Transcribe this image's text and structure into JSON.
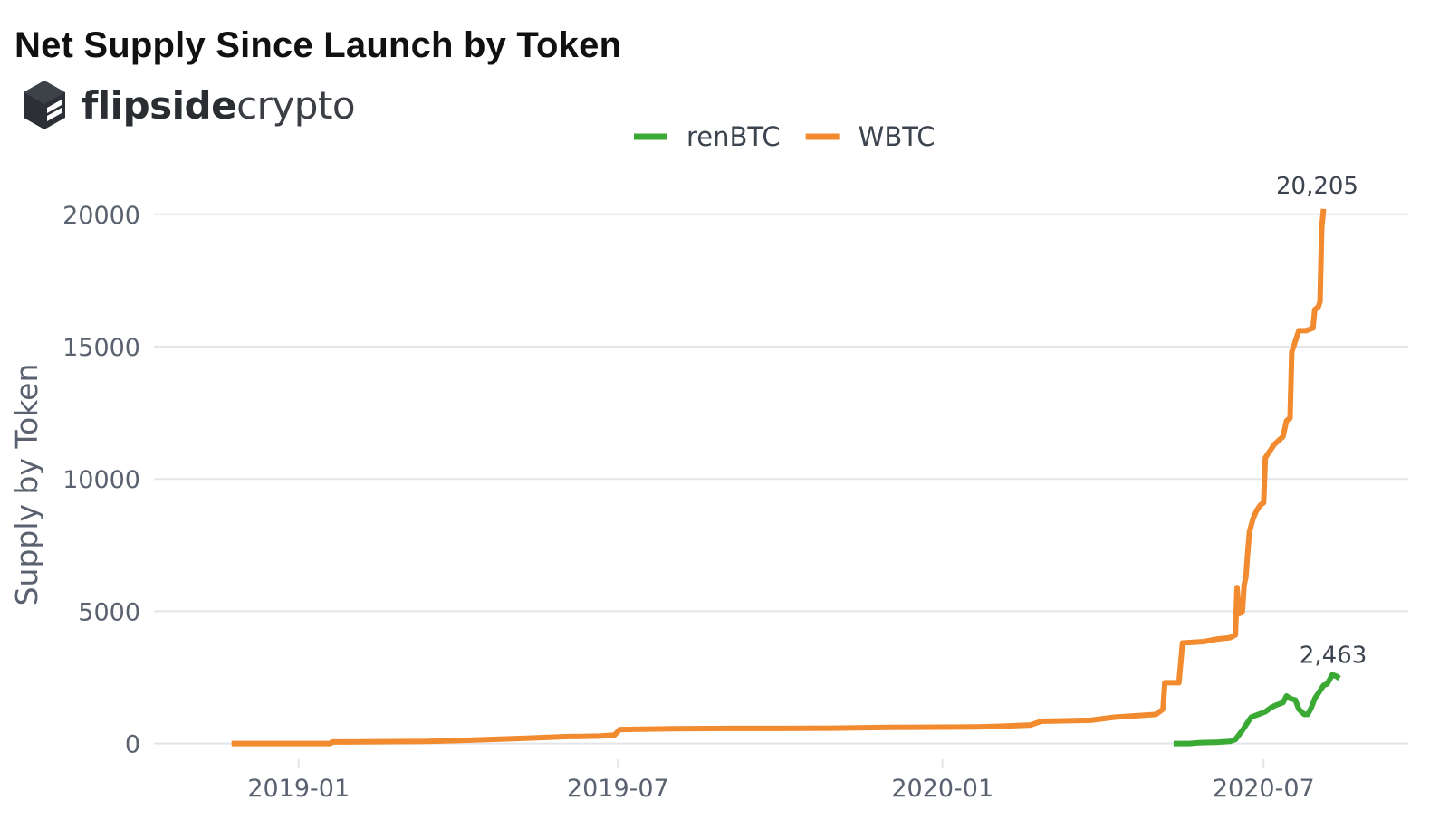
{
  "title": "Net Supply Since Launch by Token",
  "brand": {
    "name_bold": "flipside",
    "name_light": "crypto",
    "logo_icon": "flipside-cube-logo-icon"
  },
  "chart_data": {
    "type": "line",
    "title": "Net Supply Since Launch by Token",
    "xlabel": "",
    "ylabel": "Supply by Token",
    "ylim": [
      -800,
      21600
    ],
    "xlim": [
      "2018-10-11",
      "2020-09-21"
    ],
    "yticks": [
      0,
      5000,
      10000,
      15000,
      20000
    ],
    "xticks": [
      "2019-01",
      "2019-07",
      "2020-01",
      "2020-07"
    ],
    "grid": true,
    "legend": "top-center",
    "series": [
      {
        "name": "renBTC",
        "color": "#3aaa35",
        "end_label": "2,463",
        "points": [
          [
            "2020-05-11",
            0
          ],
          [
            "2020-05-20",
            0
          ],
          [
            "2020-05-25",
            30
          ],
          [
            "2020-06-05",
            50
          ],
          [
            "2020-06-12",
            80
          ],
          [
            "2020-06-15",
            150
          ],
          [
            "2020-06-19",
            500
          ],
          [
            "2020-06-22",
            800
          ],
          [
            "2020-06-24",
            1000
          ],
          [
            "2020-06-28",
            1100
          ],
          [
            "2020-07-02",
            1200
          ],
          [
            "2020-07-05",
            1350
          ],
          [
            "2020-07-08",
            1450
          ],
          [
            "2020-07-12",
            1550
          ],
          [
            "2020-07-14",
            1800
          ],
          [
            "2020-07-16",
            1700
          ],
          [
            "2020-07-19",
            1650
          ],
          [
            "2020-07-21",
            1300
          ],
          [
            "2020-07-24",
            1100
          ],
          [
            "2020-07-26",
            1100
          ],
          [
            "2020-07-28",
            1350
          ],
          [
            "2020-07-30",
            1700
          ],
          [
            "2020-08-02",
            2000
          ],
          [
            "2020-08-04",
            2200
          ],
          [
            "2020-08-06",
            2250
          ],
          [
            "2020-08-09",
            2600
          ],
          [
            "2020-08-11",
            2550
          ],
          [
            "2020-08-13",
            2463
          ]
        ]
      },
      {
        "name": "WBTC",
        "color": "#f28a2f",
        "end_label": "20,205",
        "points": [
          [
            "2018-11-24",
            0
          ],
          [
            "2019-01-19",
            0
          ],
          [
            "2019-01-20",
            60
          ],
          [
            "2019-03-15",
            80
          ],
          [
            "2019-04-10",
            130
          ],
          [
            "2019-05-10",
            200
          ],
          [
            "2019-06-01",
            260
          ],
          [
            "2019-06-20",
            280
          ],
          [
            "2019-06-29",
            320
          ],
          [
            "2019-07-02",
            530
          ],
          [
            "2019-08-01",
            560
          ],
          [
            "2019-09-01",
            570
          ],
          [
            "2019-10-01",
            570
          ],
          [
            "2019-11-01",
            580
          ],
          [
            "2019-12-01",
            610
          ],
          [
            "2020-01-01",
            620
          ],
          [
            "2020-01-20",
            630
          ],
          [
            "2020-02-01",
            650
          ],
          [
            "2020-02-20",
            700
          ],
          [
            "2020-02-26",
            840
          ],
          [
            "2020-03-25",
            880
          ],
          [
            "2020-04-08",
            1000
          ],
          [
            "2020-04-20",
            1050
          ],
          [
            "2020-05-01",
            1100
          ],
          [
            "2020-05-05",
            1300
          ],
          [
            "2020-05-06",
            2300
          ],
          [
            "2020-05-14",
            2300
          ],
          [
            "2020-05-16",
            3800
          ],
          [
            "2020-05-28",
            3850
          ],
          [
            "2020-06-05",
            3950
          ],
          [
            "2020-06-12",
            4000
          ],
          [
            "2020-06-15",
            4100
          ],
          [
            "2020-06-16",
            5900
          ],
          [
            "2020-06-17",
            4900
          ],
          [
            "2020-06-19",
            5000
          ],
          [
            "2020-06-20",
            6000
          ],
          [
            "2020-06-21",
            6300
          ],
          [
            "2020-06-22",
            7200
          ],
          [
            "2020-06-23",
            8000
          ],
          [
            "2020-06-25",
            8500
          ],
          [
            "2020-06-27",
            8800
          ],
          [
            "2020-06-29",
            9000
          ],
          [
            "2020-07-01",
            9100
          ],
          [
            "2020-07-02",
            10800
          ],
          [
            "2020-07-04",
            11000
          ],
          [
            "2020-07-07",
            11300
          ],
          [
            "2020-07-12",
            11600
          ],
          [
            "2020-07-14",
            12200
          ],
          [
            "2020-07-16",
            12300
          ],
          [
            "2020-07-17",
            14800
          ],
          [
            "2020-07-19",
            15200
          ],
          [
            "2020-07-21",
            15600
          ],
          [
            "2020-07-25",
            15600
          ],
          [
            "2020-07-29",
            15700
          ],
          [
            "2020-07-30",
            16400
          ],
          [
            "2020-08-01",
            16500
          ],
          [
            "2020-08-02",
            16700
          ],
          [
            "2020-08-03",
            19500
          ],
          [
            "2020-08-04",
            20205
          ]
        ]
      }
    ]
  }
}
